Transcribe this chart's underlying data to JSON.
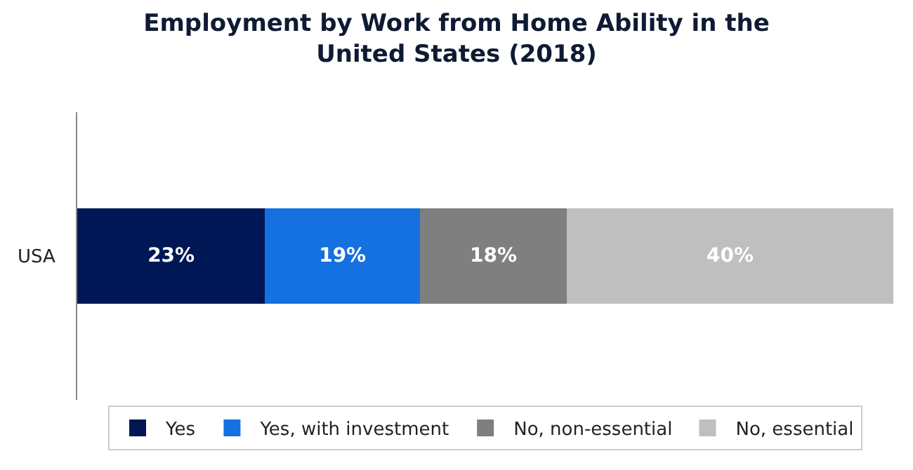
{
  "chart_data": {
    "type": "bar",
    "title": "Employment by Work from Home Ability in the United States (2018)",
    "orientation": "horizontal",
    "stacked": true,
    "categories": [
      "USA"
    ],
    "series": [
      {
        "name": "Yes",
        "color": "#001755",
        "values": [
          23
        ],
        "value_labels": [
          "23%"
        ]
      },
      {
        "name": "Yes, with investment",
        "color": "#1570e0",
        "values": [
          19
        ],
        "value_labels": [
          "19%"
        ]
      },
      {
        "name": "No, non-essential",
        "color": "#7f7f7f",
        "values": [
          18
        ],
        "value_labels": [
          "18%"
        ]
      },
      {
        "name": "No, essential",
        "color": "#bfbfbf",
        "values": [
          40
        ],
        "value_labels": [
          "40%"
        ]
      }
    ],
    "xlim": [
      0,
      100
    ],
    "tick_labels": "y",
    "legend": "bottom"
  }
}
